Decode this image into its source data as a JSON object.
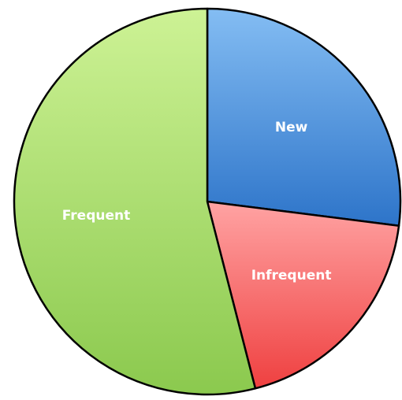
{
  "chart_data": {
    "type": "pie",
    "start_angle": 0,
    "direction": "clockwise",
    "categories": [
      "New",
      "Infrequent",
      "Frequent"
    ],
    "values": [
      27,
      19,
      54
    ],
    "colors": [
      [
        "#84bdf3",
        "#2d74c9"
      ],
      [
        "#ffa3a3",
        "#ef4040"
      ],
      [
        "#cdf295",
        "#8bc94e"
      ]
    ]
  }
}
